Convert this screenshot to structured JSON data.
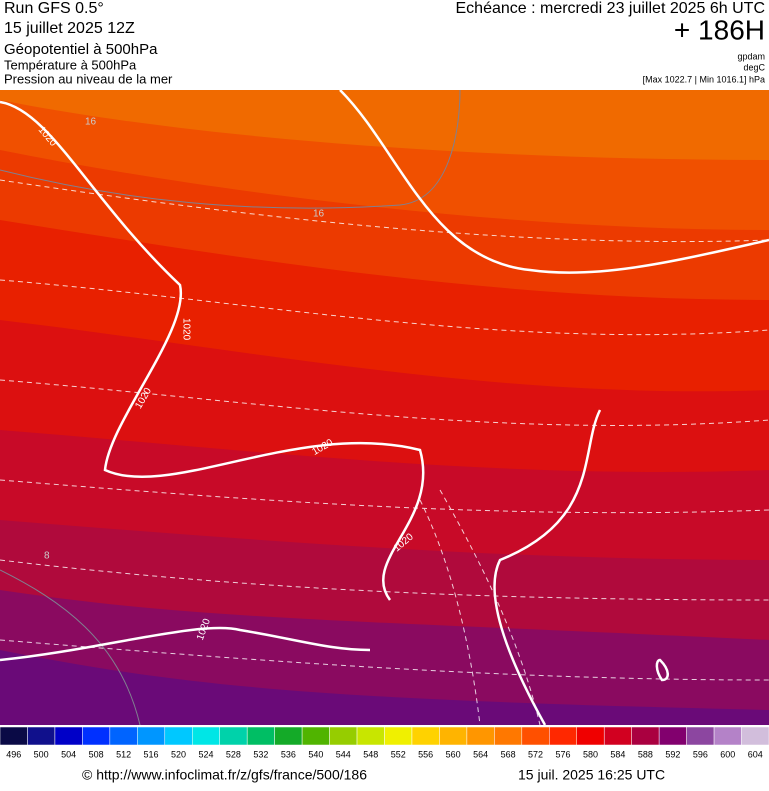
{
  "header": {
    "run": "Run GFS 0.5°",
    "run_date": "15 juillet 2025 12Z",
    "field1": "Géopotentiel à 500hPa",
    "field2": "Température à 500hPa",
    "field3": "Pression au niveau de la mer",
    "valid": "Echéance : mercredi 23 juillet 2025 6h UTC",
    "lead": "+ 186H",
    "unit1": "gpdam",
    "unit2": "degC",
    "unit3": "[Max 1022.7 | Min 1016.1] hPa"
  },
  "map": {
    "isobar_labels": [
      "1020",
      "1020",
      "1020",
      "1020",
      "1020",
      "1020"
    ],
    "isotherm_labels": [
      "16",
      "16",
      "8"
    ]
  },
  "colorbar": {
    "levels": [
      496,
      500,
      504,
      508,
      512,
      516,
      520,
      524,
      528,
      532,
      536,
      540,
      544,
      548,
      552,
      556,
      560,
      564,
      568,
      572,
      576,
      580,
      584,
      588,
      592,
      596,
      600,
      604
    ],
    "colors": [
      "#0a0a46",
      "#10108c",
      "#0000c8",
      "#0030ff",
      "#0064ff",
      "#0096ff",
      "#00c8ff",
      "#00e6e6",
      "#00d2aa",
      "#00be64",
      "#14aa28",
      "#50b400",
      "#96cd00",
      "#c8e600",
      "#f0f000",
      "#ffd200",
      "#ffb400",
      "#ff9600",
      "#ff7800",
      "#ff5000",
      "#ff2800",
      "#f00000",
      "#d20020",
      "#aa0040",
      "#82006e",
      "#8c46a0",
      "#b482c8",
      "#d2bedc"
    ]
  },
  "footer": {
    "url": "© http://www.infoclimat.fr/z/gfs/france/500/186",
    "time": "15 juil. 2025 16:25 UTC"
  }
}
